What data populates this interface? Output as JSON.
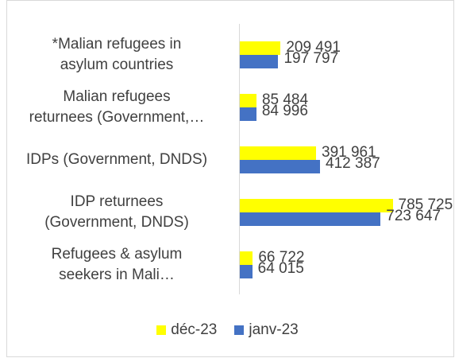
{
  "chart_data": {
    "type": "bar",
    "orientation": "horizontal",
    "categories": [
      "*Malian refugees in\nasylum countries",
      "Malian refugees\nreturnees (Government,…",
      "IDPs (Government, DNDS)",
      "IDP returnees\n(Government, DNDS)",
      "Refugees & asylum\nseekers in Mali…"
    ],
    "series": [
      {
        "name": "déc-23",
        "color": "#ffff00",
        "values": [
          209491,
          85484,
          391961,
          785725,
          66722
        ],
        "labels": [
          "209 491",
          "85 484",
          "391 961",
          "785 725",
          "66 722"
        ]
      },
      {
        "name": "janv-23",
        "color": "#4472c4",
        "values": [
          197797,
          84996,
          412387,
          723647,
          64015
        ],
        "labels": [
          "197 797",
          "84 996",
          "412 387",
          "723 647",
          "64 015"
        ]
      }
    ],
    "legend_position": "bottom",
    "grid": false,
    "xlim": [
      0,
      1000000
    ]
  }
}
